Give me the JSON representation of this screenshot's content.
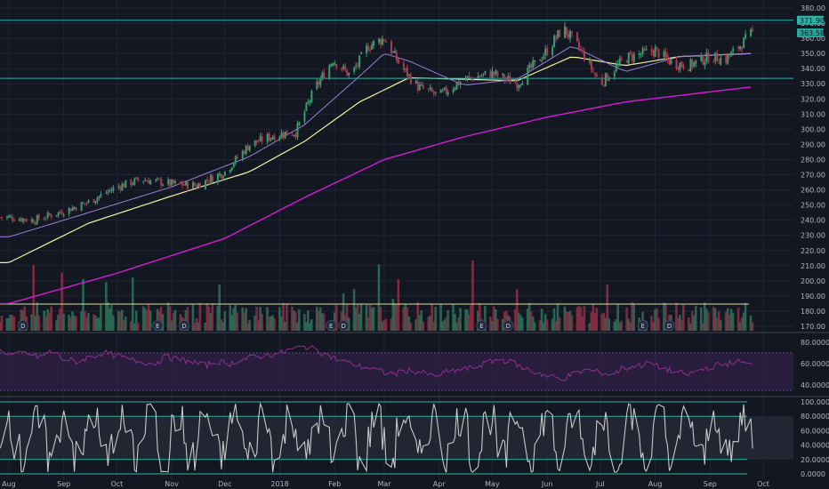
{
  "colors": {
    "background": "#131722",
    "grid": "#1f2433",
    "axis_text": "#b2b5be",
    "candle_up": "#3d9970",
    "candle_down": "#ac3a4e",
    "ma_fast": "#9c7dd6",
    "ma_mid": "#f2f2a0",
    "ma_slow": "#d61ad6",
    "hline": "#2bb3a6",
    "rsi_line": "#8e2f8e",
    "rsi_band": "#3a2353",
    "stoch_line": "#c8c8c8",
    "stoch_band": "#2a2e39",
    "badge_fill": "#1e2a3a",
    "badge_text": "#d1d4dc",
    "price_tag_1": "#2bb3a6",
    "price_tag_2": "#26a69a"
  },
  "chart_data": [
    {
      "type": "candlestick",
      "panel": "price",
      "ylim": [
        165,
        385
      ],
      "y_ticks": [
        380,
        370,
        360,
        350,
        340,
        330,
        320,
        310,
        300,
        290,
        280,
        270,
        260,
        250,
        240,
        230,
        220,
        210,
        200,
        190,
        180,
        170
      ],
      "y_tick_labels": [
        "380.00",
        "370.00",
        "360.00",
        "350.00",
        "340.00",
        "330.00",
        "320.00",
        "310.00",
        "300.00",
        "290.00",
        "280.00",
        "270.00",
        "260.00",
        "250.00",
        "240.00",
        "230.00",
        "220.00",
        "210.00",
        "200.00",
        "190.00",
        "180.00",
        "170.00"
      ],
      "x_tick_labels": [
        "Aug",
        "Sep",
        "Oct",
        "Nov",
        "Dec",
        "2018",
        "Feb",
        "Mar",
        "Apr",
        "May",
        "Jun",
        "Jul",
        "Aug",
        "Sep",
        "Oct"
      ],
      "price_levels": [
        371.9,
        333.6
      ],
      "price_tags": [
        "371.90",
        "363.58"
      ],
      "close_path": [
        [
          "2017-08-01",
          242
        ],
        [
          "2017-08-15",
          240
        ],
        [
          "2017-09-01",
          246
        ],
        [
          "2017-09-15",
          252
        ],
        [
          "2017-10-01",
          262
        ],
        [
          "2017-10-15",
          267
        ],
        [
          "2017-11-01",
          264
        ],
        [
          "2017-11-15",
          263
        ],
        [
          "2017-12-01",
          272
        ],
        [
          "2017-12-15",
          290
        ],
        [
          "2017-12-31",
          297
        ],
        [
          "2018-01-10",
          298
        ],
        [
          "2018-01-20",
          325
        ],
        [
          "2018-01-31",
          346
        ],
        [
          "2018-02-10",
          335
        ],
        [
          "2018-02-20",
          355
        ],
        [
          "2018-03-01",
          360
        ],
        [
          "2018-03-10",
          342
        ],
        [
          "2018-03-20",
          328
        ],
        [
          "2018-04-01",
          322
        ],
        [
          "2018-04-15",
          333
        ],
        [
          "2018-05-01",
          337
        ],
        [
          "2018-05-15",
          330
        ],
        [
          "2018-06-01",
          352
        ],
        [
          "2018-06-10",
          367
        ],
        [
          "2018-06-20",
          352
        ],
        [
          "2018-07-01",
          330
        ],
        [
          "2018-07-15",
          347
        ],
        [
          "2018-08-01",
          352
        ],
        [
          "2018-08-10",
          344
        ],
        [
          "2018-08-20",
          342
        ],
        [
          "2018-09-01",
          348
        ],
        [
          "2018-09-10",
          346
        ],
        [
          "2018-09-25",
          363.58
        ]
      ],
      "moving_averages": [
        {
          "color_key": "ma_fast",
          "points": [
            [
              "2017-08-01",
              229
            ],
            [
              "2017-09-15",
              245
            ],
            [
              "2017-11-01",
              262
            ],
            [
              "2017-12-15",
              282
            ],
            [
              "2018-01-15",
              303
            ],
            [
              "2018-02-15",
              335
            ],
            [
              "2018-03-01",
              350
            ],
            [
              "2018-03-15",
              345
            ],
            [
              "2018-04-15",
              329
            ],
            [
              "2018-05-15",
              333
            ],
            [
              "2018-06-15",
              355
            ],
            [
              "2018-07-15",
              338
            ],
            [
              "2018-08-15",
              348
            ],
            [
              "2018-09-25",
              350
            ]
          ]
        },
        {
          "color_key": "ma_mid",
          "points": [
            [
              "2017-08-01",
              212
            ],
            [
              "2017-09-15",
              238
            ],
            [
              "2017-11-01",
              256
            ],
            [
              "2017-12-15",
              272
            ],
            [
              "2018-01-15",
              292
            ],
            [
              "2018-02-15",
              318
            ],
            [
              "2018-03-15",
              334
            ],
            [
              "2018-04-15",
              333
            ],
            [
              "2018-05-15",
              332
            ],
            [
              "2018-06-15",
              348
            ],
            [
              "2018-07-15",
              342
            ],
            [
              "2018-08-15",
              348
            ],
            [
              "2018-09-25",
              350
            ]
          ]
        },
        {
          "color_key": "ma_slow",
          "points": [
            [
              "2017-08-01",
              185
            ],
            [
              "2017-10-01",
              205
            ],
            [
              "2017-12-01",
              228
            ],
            [
              "2018-01-15",
              255
            ],
            [
              "2018-03-01",
              280
            ],
            [
              "2018-04-15",
              295
            ],
            [
              "2018-06-01",
              308
            ],
            [
              "2018-07-15",
              318
            ],
            [
              "2018-09-25",
              328
            ]
          ]
        }
      ],
      "event_badges": [
        {
          "label": "D",
          "date": "2017-08-09"
        },
        {
          "label": "E",
          "date": "2017-10-24"
        },
        {
          "label": "D",
          "date": "2017-11-08"
        },
        {
          "label": "E",
          "date": "2018-01-30"
        },
        {
          "label": "D",
          "date": "2018-02-06"
        },
        {
          "label": "E",
          "date": "2018-04-25"
        },
        {
          "label": "D",
          "date": "2018-05-10"
        },
        {
          "label": "E",
          "date": "2018-07-25"
        },
        {
          "label": "D",
          "date": "2018-08-09"
        }
      ]
    },
    {
      "type": "bar",
      "panel": "volume",
      "note": "volume histogram overlaid at bottom of price panel; no printed scale",
      "relative_level_line": 0.33
    },
    {
      "type": "line",
      "panel": "rsi",
      "ylim": [
        30,
        90
      ],
      "y_tick_labels": [
        "80.0000",
        "60.0000",
        "40.0000"
      ],
      "band": [
        35,
        70
      ],
      "values_approx": [
        72,
        68,
        70,
        66,
        72,
        64,
        62,
        66,
        70,
        68,
        64,
        62,
        60,
        66,
        64,
        62,
        58,
        62,
        60,
        64,
        66,
        68,
        70,
        74,
        76,
        72,
        66,
        62,
        58,
        56,
        52,
        50,
        54,
        52,
        48,
        52,
        54,
        56,
        60,
        64,
        62,
        56,
        52,
        48,
        46,
        50,
        54,
        52,
        50,
        56,
        58,
        60,
        56,
        52,
        50,
        54,
        58,
        60,
        62,
        58
      ]
    },
    {
      "type": "line",
      "panel": "stochastic",
      "ylim": [
        -5,
        105
      ],
      "y_tick_labels": [
        "100.0000",
        "80.0000",
        "60.0000",
        "40.0000",
        "20.0000",
        "0.0000"
      ],
      "band": [
        20,
        80
      ]
    }
  ]
}
